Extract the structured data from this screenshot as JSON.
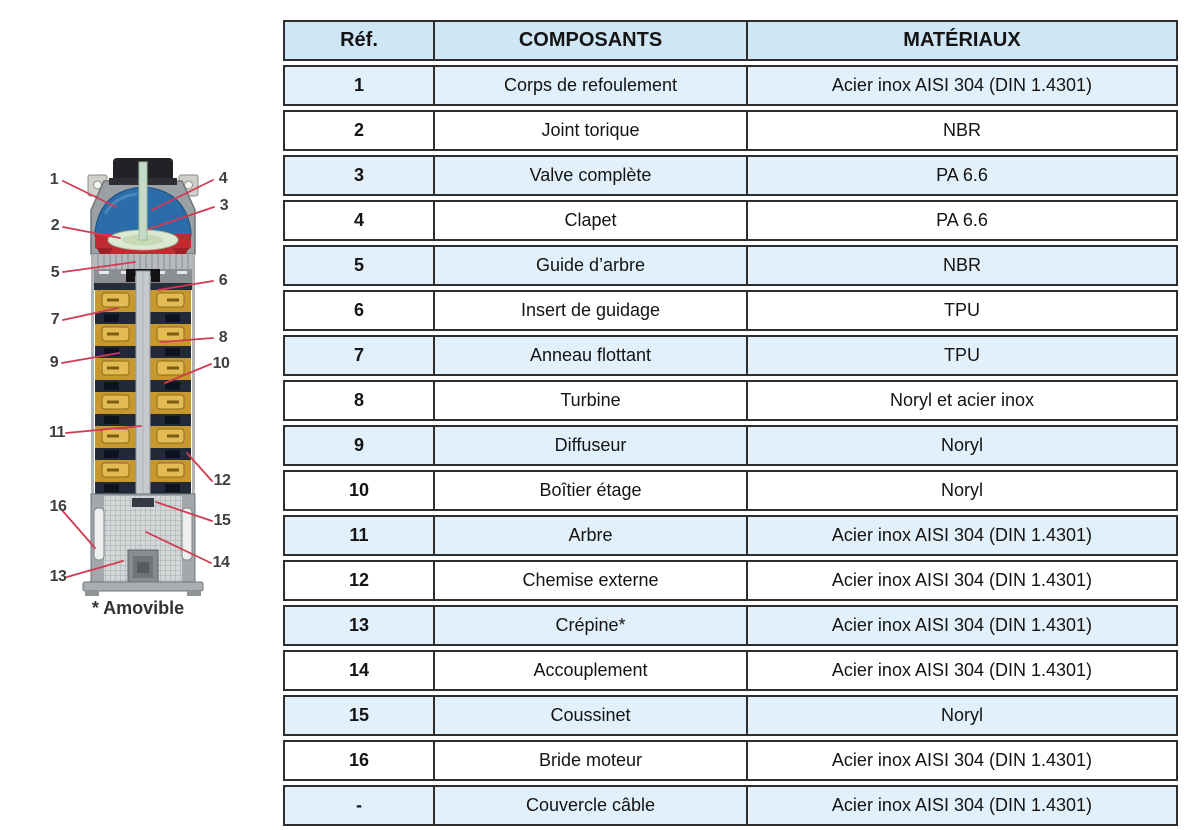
{
  "diagram": {
    "note": "* Amovible",
    "callouts": [
      {
        "label": "1"
      },
      {
        "label": "2"
      },
      {
        "label": "3"
      },
      {
        "label": "4"
      },
      {
        "label": "5"
      },
      {
        "label": "6"
      },
      {
        "label": "7"
      },
      {
        "label": "8"
      },
      {
        "label": "9"
      },
      {
        "label": "10"
      },
      {
        "label": "11"
      },
      {
        "label": "12"
      },
      {
        "label": "13"
      },
      {
        "label": "14"
      },
      {
        "label": "15"
      },
      {
        "label": "16"
      }
    ]
  },
  "table": {
    "headers": {
      "ref": "Réf.",
      "component": "COMPOSANTS",
      "material": "MATÉRIAUX"
    },
    "rows": [
      {
        "ref": "1",
        "component": "Corps de refoulement",
        "material": "Acier inox AISI 304 (DIN 1.4301)"
      },
      {
        "ref": "2",
        "component": "Joint torique",
        "material": "NBR"
      },
      {
        "ref": "3",
        "component": "Valve complète",
        "material": "PA 6.6"
      },
      {
        "ref": "4",
        "component": "Clapet",
        "material": "PA 6.6"
      },
      {
        "ref": "5",
        "component": "Guide d’arbre",
        "material": "NBR"
      },
      {
        "ref": "6",
        "component": "Insert de guidage",
        "material": "TPU"
      },
      {
        "ref": "7",
        "component": "Anneau flottant",
        "material": "TPU"
      },
      {
        "ref": "8",
        "component": "Turbine",
        "material": "Noryl et acier inox"
      },
      {
        "ref": "9",
        "component": "Diffuseur",
        "material": "Noryl"
      },
      {
        "ref": "10",
        "component": "Boîtier étage",
        "material": "Noryl"
      },
      {
        "ref": "11",
        "component": "Arbre",
        "material": "Acier inox AISI 304 (DIN 1.4301)"
      },
      {
        "ref": "12",
        "component": "Chemise externe",
        "material": "Acier inox AISI 304 (DIN 1.4301)"
      },
      {
        "ref": "13",
        "component": "Crépine*",
        "material": "Acier inox AISI 304 (DIN 1.4301)"
      },
      {
        "ref": "14",
        "component": "Accouplement",
        "material": "Acier inox AISI 304 (DIN 1.4301)"
      },
      {
        "ref": "15",
        "component": "Coussinet",
        "material": "Noryl"
      },
      {
        "ref": "16",
        "component": "Bride moteur",
        "material": "Acier inox AISI 304 (DIN 1.4301)"
      },
      {
        "ref": "-",
        "component": "Couvercle câble",
        "material": "Acier inox AISI 304 (DIN 1.4301)"
      }
    ]
  },
  "colors": {
    "table_border": "#2e2e2e",
    "header_blue": "#cfe6f5",
    "row_blue": "#e1f0fa",
    "callout_red": "#d23a52",
    "pump_gold": "#c6982e",
    "pump_navy": "#222a3a",
    "pump_blue": "#2a6da8",
    "pump_red": "#bf2b31",
    "pump_steel": "#b7bbbe"
  }
}
